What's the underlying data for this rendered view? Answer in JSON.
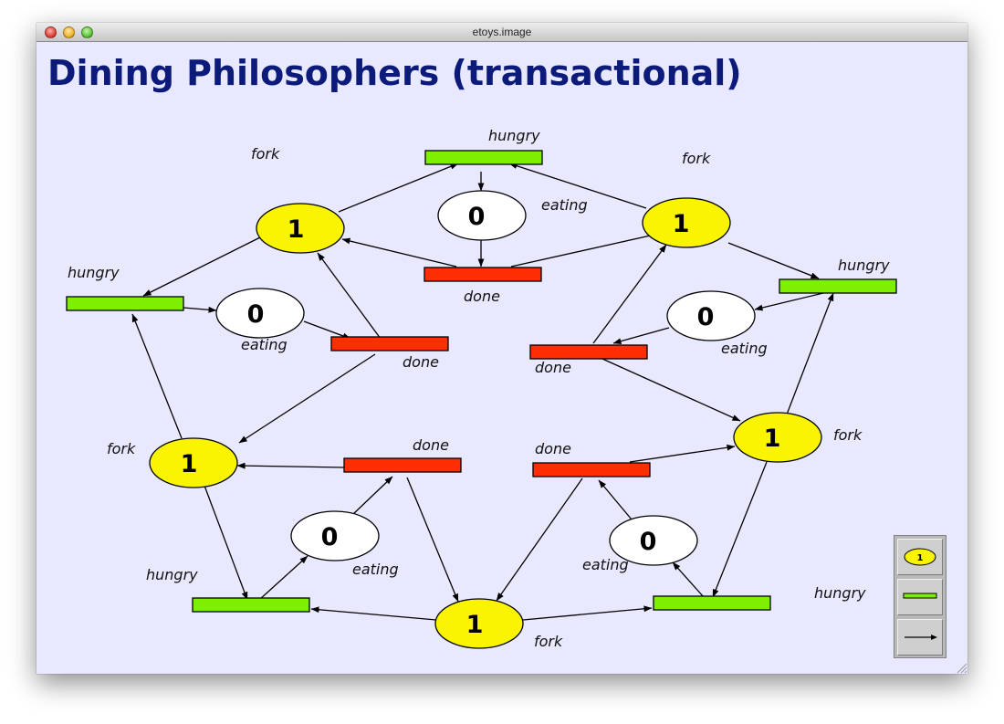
{
  "window": {
    "title": "etoys.image"
  },
  "heading": "Dining Philosophers (transactional)",
  "labels": {
    "fork": "fork",
    "hungry": "hungry",
    "eating": "eating",
    "done": "done"
  },
  "tokens": {
    "fork": "1",
    "eating": "0"
  },
  "palette": {
    "place_token": "1"
  },
  "colors": {
    "background": "#e8e8ff",
    "title": "#0c1a7a",
    "fork_place": "#fbf400",
    "eating_place": "#ffffff",
    "hungry_transition": "#7cf000",
    "done_transition": "#ff2e00"
  },
  "icons": {
    "palette_place": "yellow-ellipse-icon",
    "palette_transition": "green-bar-icon",
    "palette_arc": "arrow-icon"
  }
}
